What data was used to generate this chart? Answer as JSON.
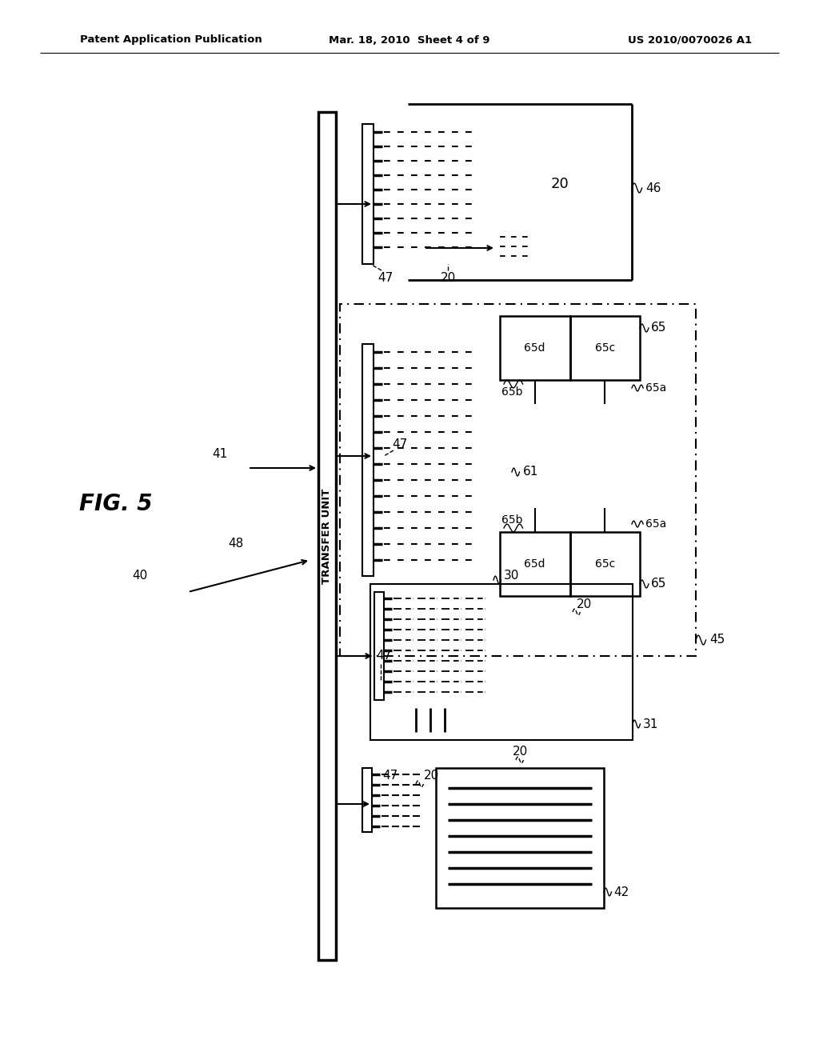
{
  "bg_color": "#ffffff",
  "lc": "#000000",
  "header_left": "Patent Application Publication",
  "header_center": "Mar. 18, 2010  Sheet 4 of 9",
  "header_right": "US 2010/0070026 A1",
  "fig_label": "FIG. 5",
  "labels": {
    "transfer_unit": "TRANSFER UNIT",
    "n40": "40",
    "n41": "41",
    "n42": "42",
    "n45": "45",
    "n46": "46",
    "n47": "47",
    "n48": "48",
    "n20": "20",
    "n30": "30",
    "n31": "31",
    "n61": "61",
    "n65_top": "65",
    "n65_bot": "65",
    "n65a_top": "65a",
    "n65a_bot": "65a",
    "n65b_top": "65b",
    "n65b_bot": "65b",
    "n65c_top": "65c",
    "n65c_bot": "65c",
    "n65d_top": "65d",
    "n65d_bot": "65d"
  }
}
